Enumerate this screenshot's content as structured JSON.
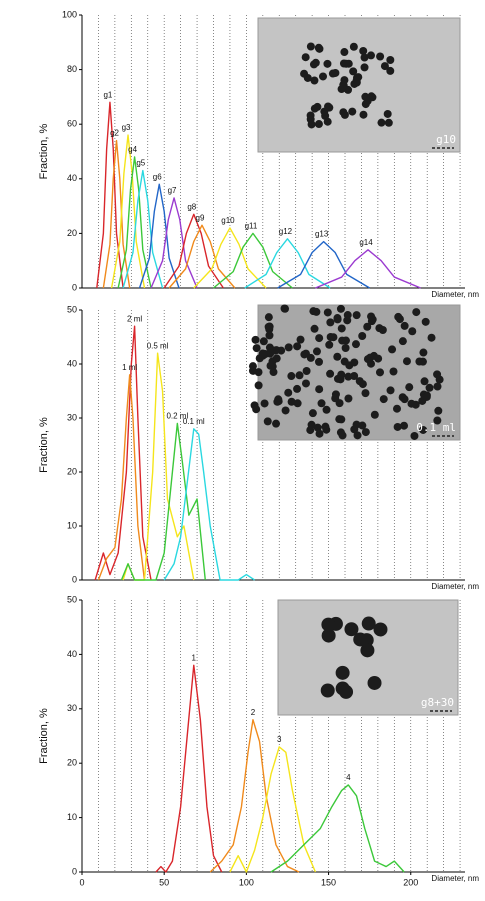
{
  "chart_data": [
    {
      "type": "line",
      "y_label": "Fraction, %",
      "x_label": "Diameter, nm",
      "inset_label": "g10",
      "xlim": [
        0,
        233
      ],
      "ylim": [
        0,
        100
      ],
      "yticks": [
        0,
        20,
        40,
        60,
        80,
        100
      ],
      "xgrid": [
        10,
        20,
        30,
        40,
        50,
        60,
        70,
        80,
        90,
        100,
        110,
        120,
        130,
        140,
        150,
        160,
        170,
        180,
        190,
        200,
        210,
        220,
        230
      ],
      "series": [
        {
          "name": "g1",
          "color": "#d9262b",
          "x": [
            9,
            13,
            15,
            17,
            19,
            21,
            25
          ],
          "values": [
            0,
            20,
            51,
            68,
            51,
            20,
            0
          ]
        },
        {
          "name": "g2",
          "color": "#f08a1c",
          "x": [
            13,
            17,
            19,
            21,
            23,
            25,
            29
          ],
          "values": [
            0,
            16,
            40,
            54,
            40,
            16,
            0
          ]
        },
        {
          "name": "g3",
          "color": "#f5e51b",
          "x": [
            18,
            23,
            25.5,
            28,
            30.5,
            33,
            38
          ],
          "values": [
            0,
            17,
            42,
            56,
            42,
            17,
            0
          ]
        },
        {
          "name": "g4",
          "color": "#3cc83a",
          "x": [
            22,
            27,
            29.5,
            32,
            34.5,
            37,
            42
          ],
          "values": [
            0,
            14,
            36,
            48,
            36,
            14,
            0
          ]
        },
        {
          "name": "g5",
          "color": "#2ad8e0",
          "x": [
            25,
            31,
            34,
            37,
            40,
            43,
            49
          ],
          "values": [
            0,
            13,
            32,
            43,
            32,
            13,
            0
          ]
        },
        {
          "name": "g6",
          "color": "#2266c8",
          "x": [
            35,
            41,
            44,
            47,
            50,
            53,
            59
          ],
          "values": [
            0,
            11,
            28,
            38,
            28,
            11,
            0
          ]
        },
        {
          "name": "g7",
          "color": "#9b3bd0",
          "x": [
            42,
            49,
            52.5,
            56,
            59.5,
            63,
            70
          ],
          "values": [
            0,
            10,
            25,
            33,
            25,
            10,
            0
          ]
        },
        {
          "name": "g8",
          "color": "#d9262b",
          "x": [
            50,
            59,
            63.5,
            68,
            72.5,
            77,
            86
          ],
          "values": [
            0,
            8,
            20,
            27,
            20,
            8,
            0
          ]
        },
        {
          "name": "g9",
          "color": "#f08a1c",
          "x": [
            53,
            63,
            68,
            73,
            78,
            83,
            93
          ],
          "values": [
            0,
            7,
            17,
            23,
            17,
            7,
            0
          ]
        },
        {
          "name": "g10",
          "color": "#f5e51b",
          "x": [
            68,
            79,
            84.5,
            90,
            95.5,
            101,
            112
          ],
          "values": [
            0,
            7,
            16,
            22,
            16,
            7,
            0
          ]
        },
        {
          "name": "g11",
          "color": "#3cc83a",
          "x": [
            80,
            92,
            98,
            104,
            110,
            116,
            128
          ],
          "values": [
            0,
            6,
            15,
            20,
            15,
            6,
            0
          ]
        },
        {
          "name": "g12",
          "color": "#2ad8e0",
          "x": [
            99,
            112,
            118.5,
            125,
            131.5,
            138,
            151
          ],
          "values": [
            0,
            5,
            13,
            18,
            13,
            5,
            0
          ]
        },
        {
          "name": "g13",
          "color": "#2266c8",
          "x": [
            119,
            133,
            140,
            147,
            154,
            161,
            175
          ],
          "values": [
            0,
            5,
            13,
            17,
            13,
            5,
            0
          ]
        },
        {
          "name": "g14",
          "color": "#9b3bd0",
          "x": [
            142,
            158,
            166,
            174,
            182,
            190,
            206
          ],
          "values": [
            0,
            4,
            10,
            14,
            10,
            4,
            0
          ]
        }
      ]
    },
    {
      "type": "line",
      "y_label": "Fraction, %",
      "x_label": "Diameter, nm",
      "inset_label": "0.1 ml",
      "xlim": [
        0,
        233
      ],
      "ylim": [
        0,
        50
      ],
      "yticks": [
        0,
        10,
        20,
        30,
        40,
        50
      ],
      "xgrid": [
        10,
        20,
        30,
        40,
        50,
        60,
        70,
        80,
        90,
        100,
        110,
        120,
        130,
        140,
        150,
        160,
        170,
        180,
        190,
        200,
        210,
        220,
        230
      ],
      "series": [
        {
          "name": "2 ml",
          "color": "#d9262b",
          "x": [
            8,
            13,
            17,
            22,
            27,
            30,
            32,
            34,
            37,
            42
          ],
          "values": [
            0,
            5,
            1,
            5,
            20,
            40,
            47,
            30,
            8,
            0
          ]
        },
        {
          "name": "1 ml",
          "color": "#f08a1c",
          "x": [
            10,
            15,
            20,
            24,
            27,
            29,
            31,
            34,
            38
          ],
          "values": [
            0,
            4,
            6,
            15,
            30,
            38,
            30,
            10,
            0
          ]
        },
        {
          "name": "0.5 ml",
          "color": "#f5e51b",
          "x": [
            25,
            28,
            32,
            38,
            43,
            46,
            49,
            52,
            58,
            62,
            68
          ],
          "values": [
            0,
            3,
            0,
            0,
            20,
            42,
            35,
            15,
            8,
            10,
            0
          ]
        },
        {
          "name": "0.2 ml",
          "color": "#3cc83a",
          "x": [
            24,
            28,
            32,
            45,
            50,
            55,
            58,
            61,
            65,
            70,
            75
          ],
          "values": [
            0,
            3,
            0,
            0,
            5,
            20,
            29,
            22,
            12,
            15,
            0
          ]
        },
        {
          "name": "0.1 ml",
          "color": "#2ad8e0",
          "x": [
            50,
            56,
            60,
            64,
            68,
            71,
            74,
            78,
            84,
            95,
            100,
            105
          ],
          "values": [
            0,
            3,
            8,
            18,
            28,
            27,
            20,
            10,
            0,
            0,
            1,
            0
          ]
        }
      ]
    },
    {
      "type": "line",
      "y_label": "Fraction, %",
      "x_label": "Diameter, nm",
      "inset_label": "g8+30",
      "xlim": [
        0,
        233
      ],
      "ylim": [
        0,
        50
      ],
      "yticks": [
        0,
        10,
        20,
        30,
        40,
        50
      ],
      "xticks": [
        0,
        50,
        100,
        150,
        200
      ],
      "xgrid": [
        10,
        20,
        30,
        40,
        50,
        60,
        70,
        80,
        90,
        100,
        110,
        120,
        130,
        140,
        150,
        160,
        170,
        180,
        190,
        200,
        210,
        220,
        230
      ],
      "series": [
        {
          "name": "1",
          "color": "#d9262b",
          "x": [
            45,
            48,
            51,
            55,
            60,
            64,
            68,
            72,
            76,
            80,
            85
          ],
          "values": [
            0,
            1,
            0,
            2,
            12,
            25,
            38,
            28,
            12,
            3,
            0
          ]
        },
        {
          "name": "2",
          "color": "#f08a1c",
          "x": [
            78,
            85,
            92,
            97,
            101,
            104,
            108,
            112,
            118,
            125,
            132
          ],
          "values": [
            0,
            2,
            5,
            12,
            22,
            28,
            24,
            14,
            5,
            1,
            0
          ]
        },
        {
          "name": "3",
          "color": "#f5e51b",
          "x": [
            90,
            95,
            100,
            105,
            110,
            115,
            120,
            124,
            128,
            135,
            142
          ],
          "values": [
            0,
            3,
            0,
            4,
            10,
            18,
            23,
            22,
            15,
            5,
            0
          ]
        },
        {
          "name": "4",
          "color": "#3cc83a",
          "x": [
            115,
            125,
            135,
            145,
            152,
            158,
            162,
            167,
            172,
            178,
            185,
            190,
            196
          ],
          "values": [
            0,
            2,
            5,
            8,
            12,
            15,
            16,
            14,
            8,
            2,
            1,
            2,
            0
          ]
        }
      ]
    }
  ]
}
